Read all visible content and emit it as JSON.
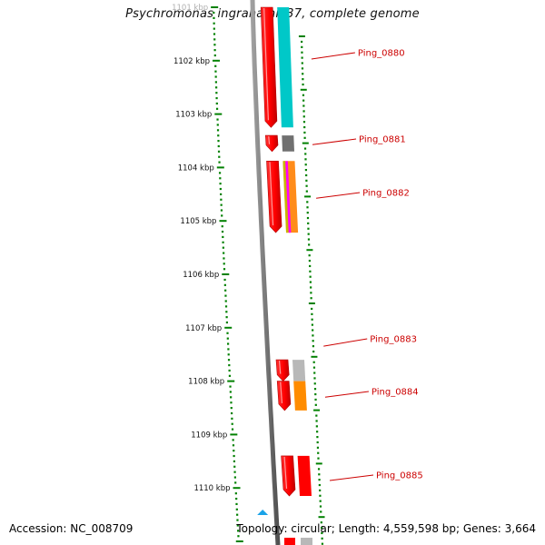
{
  "title": "Psychromonas ingrahamii 37, complete genome",
  "footer": {
    "accession": "Accession: NC_008709",
    "summary": "Topology: circular; Length: 4,559,598 bp; Genes: 3,664"
  },
  "ruler": [
    {
      "label": "1101 kbp",
      "faded": true
    },
    {
      "label": "1102 kbp"
    },
    {
      "label": "1103 kbp"
    },
    {
      "label": "1104 kbp"
    },
    {
      "label": "1105 kbp"
    },
    {
      "label": "1106 kbp"
    },
    {
      "label": "1107 kbp"
    },
    {
      "label": "1108 kbp"
    },
    {
      "label": "1109 kbp"
    },
    {
      "label": "1110 kbp"
    }
  ],
  "genes": [
    {
      "name": "Ping_0880",
      "start_kbp": 1101.0,
      "end_kbp": 1103.25,
      "color": "#00c8c8"
    },
    {
      "name": "Ping_0881",
      "start_kbp": 1103.4,
      "end_kbp": 1103.7,
      "color": "#707070"
    },
    {
      "name": "Ping_0882",
      "start_kbp": 1103.88,
      "end_kbp": 1105.22,
      "color": "#ff8c1a",
      "stripes": [
        "#c8b400",
        "#ff00ff"
      ]
    },
    {
      "name": "Ping_0883",
      "start_kbp": 1107.6,
      "end_kbp": 1108.0,
      "color": "#b8b8b8"
    },
    {
      "name": "Ping_0884",
      "start_kbp": 1108.0,
      "end_kbp": 1108.55,
      "color": "#ff8c00"
    },
    {
      "name": "Ping_0885",
      "start_kbp": 1109.4,
      "end_kbp": 1110.15,
      "color": "#ff0000"
    }
  ],
  "colors": {
    "cds": "#ff0000",
    "ruler": "#008000",
    "backbone": "#808080",
    "callout": "#cc0000",
    "marker": "#1aa3e8"
  },
  "icons": {
    "marker": "triangle-up-icon"
  }
}
